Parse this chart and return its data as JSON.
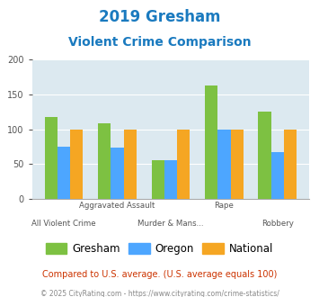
{
  "title_line1": "2019 Gresham",
  "title_line2": "Violent Crime Comparison",
  "title_color": "#1a7abf",
  "gresham": [
    118,
    108,
    55,
    163,
    125
  ],
  "oregon": [
    75,
    74,
    56,
    100,
    67
  ],
  "national": [
    100,
    100,
    100,
    100,
    100
  ],
  "gresham_color": "#7dc142",
  "oregon_color": "#4da6ff",
  "national_color": "#f5a623",
  "ylim": [
    0,
    200
  ],
  "yticks": [
    0,
    50,
    100,
    150,
    200
  ],
  "plot_bg": "#dce9f0",
  "legend_labels": [
    "Gresham",
    "Oregon",
    "National"
  ],
  "xtick_top": [
    "",
    "Aggravated Assault",
    "",
    "Rape",
    ""
  ],
  "xtick_bot": [
    "All Violent Crime",
    "",
    "Murder & Mans...",
    "",
    "Robbery"
  ],
  "footnote1": "Compared to U.S. average. (U.S. average equals 100)",
  "footnote2": "© 2025 CityRating.com - https://www.cityrating.com/crime-statistics/",
  "footnote1_color": "#cc3300",
  "footnote2_color": "#888888"
}
